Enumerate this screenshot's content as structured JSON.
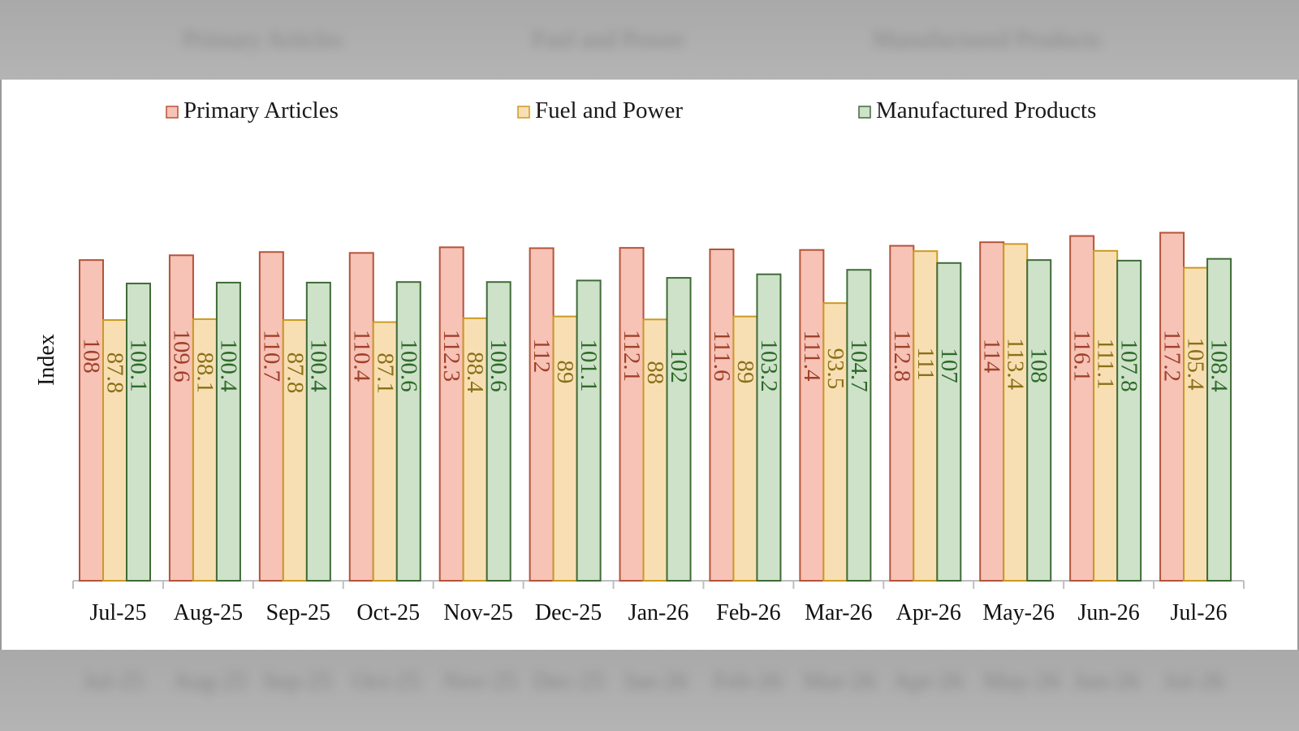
{
  "chart_data": {
    "type": "bar",
    "title": "",
    "xlabel": "",
    "ylabel": "Index",
    "ylim": [
      0,
      130
    ],
    "grid": false,
    "legend_position": "top",
    "categories": [
      "Jul-25",
      "Aug-25",
      "Sep-25",
      "Oct-25",
      "Nov-25",
      "Dec-25",
      "Jan-26",
      "Feb-26",
      "Mar-26",
      "Apr-26",
      "May-26",
      "Jun-26",
      "Jul-26"
    ],
    "series": [
      {
        "name": "Primary Articles",
        "fill": "#f6c3b6",
        "stroke": "#b5533a",
        "label_color": "#a0402a",
        "values": [
          108,
          109.6,
          110.7,
          110.4,
          112.3,
          112,
          112.1,
          111.6,
          111.4,
          112.8,
          114,
          116.1,
          117.2
        ],
        "labels": [
          "108",
          "109.6",
          "110.7",
          "110.4",
          "112.3",
          "112",
          "112.1",
          "111.6",
          "111.4",
          "112.8",
          "114",
          "116.1",
          "117.2"
        ]
      },
      {
        "name": "Fuel and Power",
        "fill": "#f8dfb3",
        "stroke": "#cc9a22",
        "label_color": "#8a7018",
        "values": [
          87.8,
          88.1,
          87.8,
          87.1,
          88.4,
          89,
          88,
          89,
          93.5,
          111,
          113.4,
          111.1,
          105.4
        ],
        "labels": [
          "87.8",
          "88.1",
          "87.8",
          "87.1",
          "88.4",
          "89",
          "88",
          "89",
          "93.5",
          "111",
          "113.4",
          "111.1",
          "105.4"
        ]
      },
      {
        "name": "Manufactured Products",
        "fill": "#cde2c8",
        "stroke": "#3f6b37",
        "label_color": "#2f6a2a",
        "values": [
          100.1,
          100.4,
          100.4,
          100.6,
          100.6,
          101.1,
          102,
          103.2,
          104.7,
          107,
          108,
          107.8,
          108.4
        ],
        "labels": [
          "100.1",
          "100.4",
          "100.4",
          "100.6",
          "100.6",
          "101.1",
          "102",
          "103.2",
          "104.7",
          "107",
          "108",
          "107.8",
          "108.4"
        ]
      }
    ]
  },
  "background_bands": {
    "top_ghost_labels": [
      "Primary Articles",
      "Fuel and Power",
      "Manufactured Products"
    ],
    "bottom_ghost_labels": [
      "Jul-25",
      "Aug-25",
      "Sep-25",
      "Oct-25",
      "Nov-25",
      "Dec-25",
      "Jan-26",
      "Feb-26",
      "Mar-26",
      "Apr-26",
      "May-26",
      "Jun-26",
      "Jul-26"
    ]
  }
}
